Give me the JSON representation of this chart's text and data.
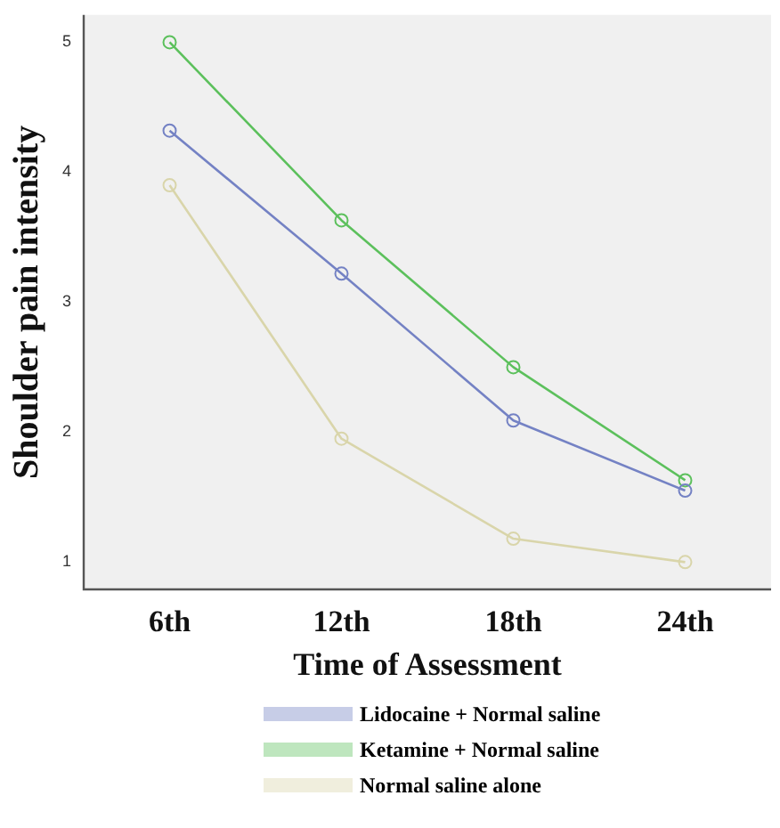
{
  "chart_data": {
    "type": "line",
    "xlabel": "Time of Assessment",
    "ylabel": "Shoulder pain intensity",
    "categories": [
      "6th",
      "12th",
      "18th",
      "24th"
    ],
    "series": [
      {
        "name": "Lidocaine + Normal saline",
        "color": "#7482c4",
        "values": [
          4.32,
          3.22,
          2.09,
          1.55
        ]
      },
      {
        "name": "Ketamine + Normal saline",
        "color": "#5cc05c",
        "values": [
          5.0,
          3.63,
          2.5,
          1.63
        ]
      },
      {
        "name": "Normal saline alone",
        "color": "#d9d5aa",
        "values": [
          3.9,
          1.95,
          1.18,
          1.0
        ]
      }
    ],
    "ylim": [
      0.79,
      5.21
    ],
    "yticks": [
      1,
      2,
      3,
      4,
      5
    ],
    "grid": false,
    "legend": "bottom",
    "marker": "circle",
    "line_style": "solid"
  }
}
